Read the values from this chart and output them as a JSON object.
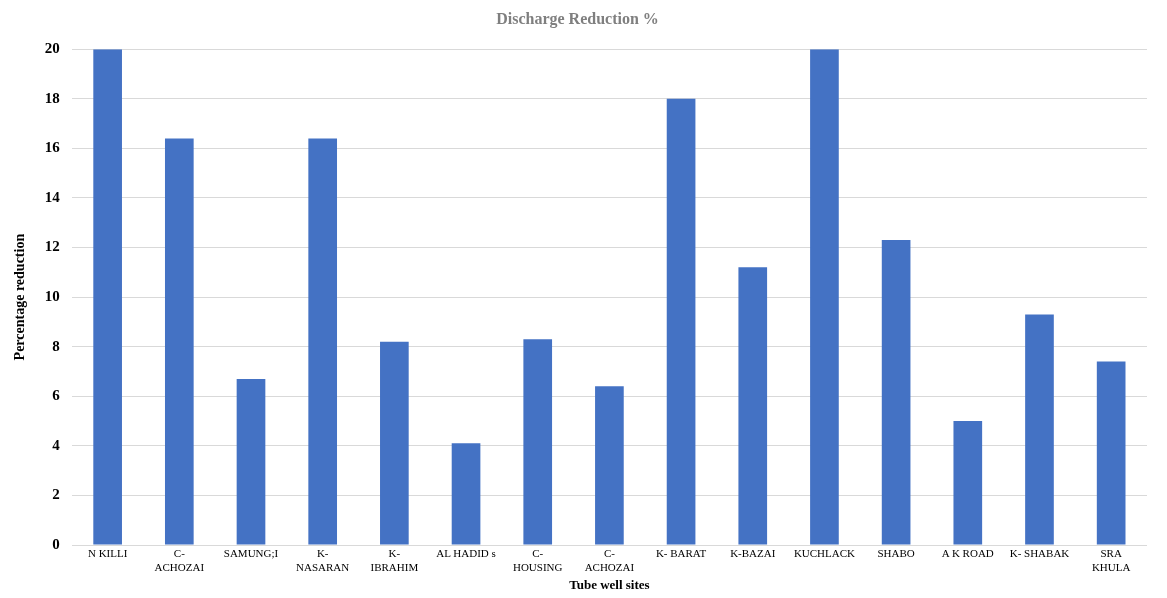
{
  "chart_data": {
    "type": "bar",
    "title": "Discharge Reduction %",
    "xlabel": "Tube well sites",
    "ylabel": "Percentage reduction",
    "categories": [
      "N KILLI",
      "C-\nACHOZAI",
      "SAMUNG;I",
      "K-\nNASARAN",
      "K-\nIBRAHIM",
      "AL HADID s",
      "C-\nHOUSING",
      "C-\nACHOZAI",
      "K- BARAT",
      "K-BAZAI",
      "KUCHLACK",
      "SHABO",
      "A K ROAD",
      "K- SHABAK",
      "SRA\nKHULA"
    ],
    "values": [
      20,
      16.4,
      6.7,
      16.4,
      8.2,
      4.1,
      8.3,
      6.4,
      18,
      11.2,
      20,
      12.3,
      5,
      9.3,
      7.4
    ],
    "color": "#4472c4",
    "ylim": [
      0,
      20
    ],
    "yticks": [
      0,
      2,
      4,
      6,
      8,
      10,
      12,
      14,
      16,
      18,
      20
    ],
    "grid": "y",
    "legend": false
  }
}
